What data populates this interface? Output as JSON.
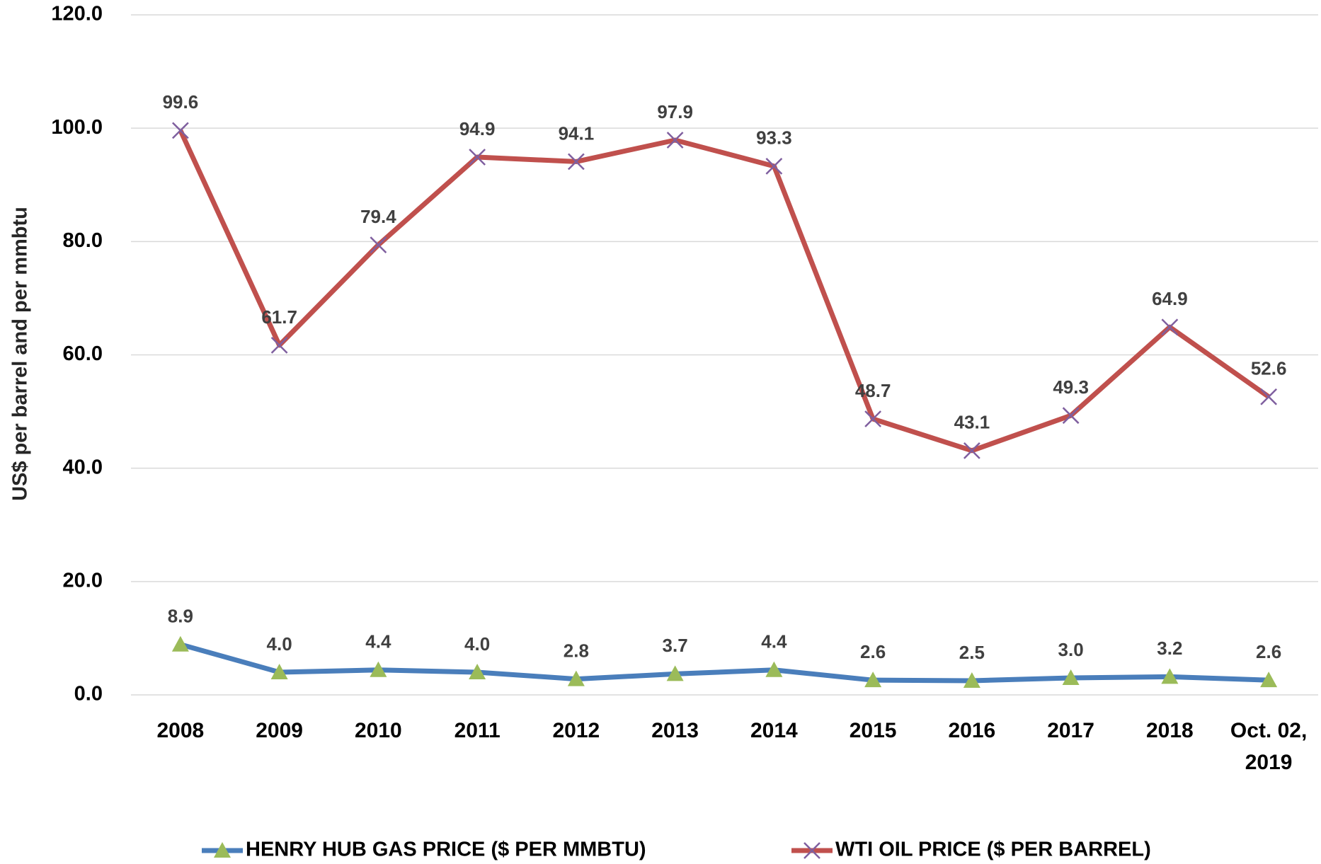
{
  "chart_data": {
    "type": "line",
    "y_label": "US$ per barrel and per mmbtu",
    "categories": [
      "2008",
      "2009",
      "2010",
      "2011",
      "2012",
      "2013",
      "2014",
      "2015",
      "2016",
      "2017",
      "2018",
      "Oct. 02, 2019"
    ],
    "series": [
      {
        "name": "HENRY HUB GAS PRICE ($ PER MMBTU)",
        "color": "#4a7ebb",
        "marker": "triangle",
        "marker_color": "#9bbb59",
        "values": [
          8.9,
          4.0,
          4.4,
          4.0,
          2.8,
          3.7,
          4.4,
          2.6,
          2.5,
          3.0,
          3.2,
          2.6
        ],
        "value_labels": [
          "8.9",
          "4.0",
          "4.4",
          "4.0",
          "2.8",
          "3.7",
          "4.4",
          "2.6",
          "2.5",
          "3.0",
          "3.2",
          "2.6"
        ]
      },
      {
        "name": "WTI OIL PRICE ($ PER BARREL)",
        "color": "#c0504d",
        "marker": "x",
        "marker_color": "#7f5f9f",
        "values": [
          99.6,
          61.7,
          79.4,
          94.9,
          94.1,
          97.9,
          93.3,
          48.7,
          43.1,
          49.3,
          64.9,
          52.6
        ]
      }
    ],
    "ylim": [
      0,
      120
    ],
    "yticks": [
      {
        "value": 0,
        "label": "0.0"
      },
      {
        "value": 20,
        "label": "20.0"
      },
      {
        "value": 40,
        "label": "40.0"
      },
      {
        "value": 60,
        "label": "60.0"
      },
      {
        "value": 80,
        "label": "80.0"
      },
      {
        "value": 100,
        "label": "100.0"
      },
      {
        "value": 120,
        "label": "120.0"
      }
    ],
    "grid": true,
    "legend": "bottom"
  }
}
